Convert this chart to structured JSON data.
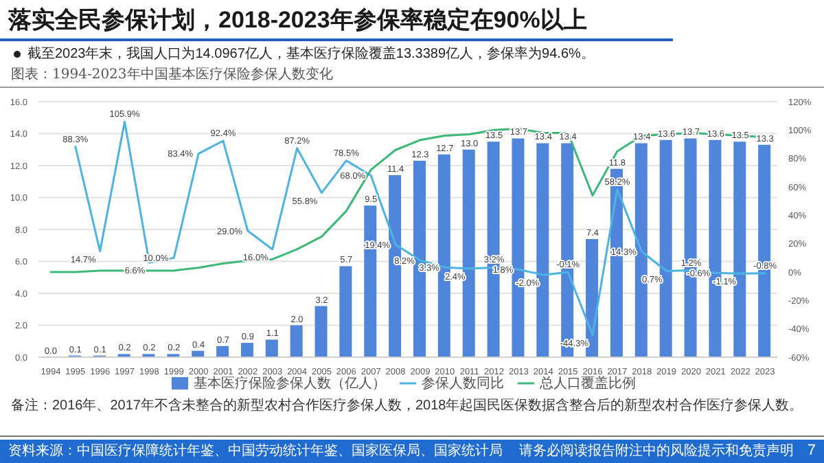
{
  "chart_data": {
    "type": "bar",
    "title": "落实全民参保计划，2018-2023年参保率稳定在90%以上",
    "subtitle": "截至2023年末，我国人口为14.0967亿人，基本医疗保险覆盖13.3389亿人，参保率为94.6%。",
    "annotations": [
      "图表：1994-2023年中国基本医疗保险参保人数变化",
      "备注：2016年、2017年不含未整合的新型农村合作医疗参保人数，2018年起国民医保数据含整合后的新型农村合作医疗参保人数。",
      "资料来源：中国医疗保障统计年鉴、中国劳动统计年鉴、国家医保局、国家统计局",
      "请务必阅读报告附注中的风险提示和免责声明",
      "7"
    ],
    "categories": [
      "1994",
      "1995",
      "1996",
      "1997",
      "1998",
      "1999",
      "2000",
      "2001",
      "2002",
      "2003",
      "2004",
      "2005",
      "2006",
      "2007",
      "2008",
      "2009",
      "2010",
      "2011",
      "2012",
      "2013",
      "2014",
      "2015",
      "2016",
      "2017",
      "2018",
      "2019",
      "2020",
      "2021",
      "2022",
      "2023"
    ],
    "series": [
      {
        "name": "基本医疗保险参保人数（亿人）",
        "color": "#4f86dc",
        "values": [
          0,
          0.1,
          0.1,
          0.2,
          0.2,
          0.2,
          0.4,
          0.7,
          0.9,
          1.1,
          2.0,
          3.2,
          5.7,
          9.5,
          11.4,
          12.3,
          12.7,
          13.0,
          13.5,
          13.7,
          13.4,
          13.4,
          7.4,
          11.8,
          13.4,
          13.6,
          13.7,
          13.6,
          13.5,
          13.3
        ],
        "value_labels": [
          "0.0",
          "0.1",
          "0.1",
          "0.2",
          "0.2",
          "0.2",
          "0.4",
          "0.7",
          "0.9",
          "1.1",
          "2.0",
          "3.2",
          "5.7",
          "9.5",
          "11.4",
          "12.3",
          "12.7",
          "13.0",
          "13.5",
          "13.7",
          "13.4",
          "13.4",
          "7.4",
          "11.8",
          "13.4",
          "13.6",
          "13.7",
          "13.6",
          "13.5",
          "13.3"
        ]
      },
      {
        "name": "参保人数同比",
        "type": "line",
        "axis": "y2",
        "color": "#4db3e3",
        "values": [
          null,
          88.3,
          14.7,
          105.9,
          6.6,
          10.0,
          83.4,
          92.4,
          29.0,
          16.0,
          87.2,
          55.8,
          78.5,
          68.0,
          19.4,
          8.2,
          3.3,
          2.4,
          3.2,
          1.8,
          -2.0,
          -0.1,
          -44.3,
          58.2,
          14.3,
          0.7,
          1.2,
          -0.6,
          -1.1,
          -0.8
        ],
        "value_labels": [
          null,
          "88.3%",
          "14.7%",
          "105.9%",
          "6.6%",
          "10.0%",
          "83.4%",
          "92.4%",
          "29.0%",
          "16.0%",
          "87.2%",
          "55.8%",
          "78.5%",
          "68.0%",
          "19.4%",
          "8.2%",
          "3.3%",
          "2.4%",
          "3.2%",
          "1.8%",
          "-2.0%",
          "-0.1%",
          "-44.3%",
          "58.2%",
          "14.3%",
          "0.7%",
          "1.2%",
          "-0.6%",
          "-1.1%",
          "-0.8%"
        ]
      },
      {
        "name": "总人口覆盖比例",
        "type": "line",
        "axis": "y2",
        "color": "#3cb878",
        "values": [
          0,
          0,
          1,
          1,
          1,
          1,
          3,
          6,
          8,
          9,
          16,
          25,
          43,
          72,
          86,
          93,
          96,
          97,
          100,
          101,
          98,
          98,
          54,
          85,
          96,
          97,
          98,
          97,
          96,
          95
        ]
      }
    ],
    "ylim": [
      0,
      16
    ],
    "yticks": [
      {
        "value": 0,
        "label": "0.0"
      },
      {
        "value": 2,
        "label": "2.0"
      },
      {
        "value": 4,
        "label": "4.0"
      },
      {
        "value": 6,
        "label": "6.0"
      },
      {
        "value": 8,
        "label": "8.0"
      },
      {
        "value": 10,
        "label": "10.0"
      },
      {
        "value": 12,
        "label": "12.0"
      },
      {
        "value": 14,
        "label": "14.0"
      },
      {
        "value": 16,
        "label": "16.0"
      }
    ],
    "y2lim": [
      -60,
      120
    ],
    "y2ticks": [
      {
        "value": -60,
        "label": "-60%"
      },
      {
        "value": -40,
        "label": "-40%"
      },
      {
        "value": -20,
        "label": "-20%"
      },
      {
        "value": 0,
        "label": "0%"
      },
      {
        "value": 20,
        "label": "20%"
      },
      {
        "value": 40,
        "label": "40%"
      },
      {
        "value": 60,
        "label": "60%"
      },
      {
        "value": 80,
        "label": "80%"
      },
      {
        "value": 100,
        "label": "100%"
      },
      {
        "value": 120,
        "label": "120%"
      }
    ],
    "grid": "y",
    "legend": "bottom",
    "marker": "none",
    "line_style": "solid"
  }
}
